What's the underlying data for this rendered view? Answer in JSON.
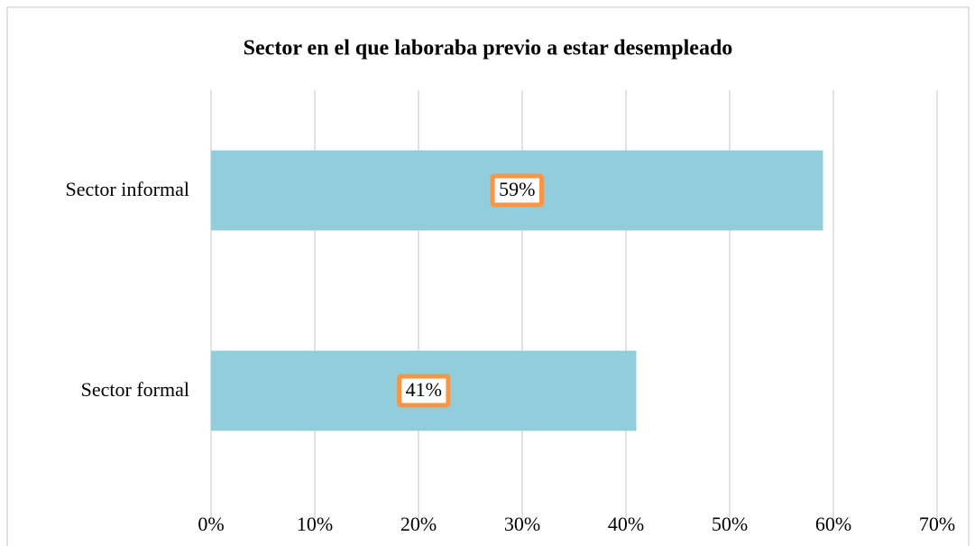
{
  "chart_data": {
    "type": "bar",
    "orientation": "horizontal",
    "title": "Sector en el que laboraba previo a estar desempleado",
    "categories": [
      "Sector informal",
      "Sector formal"
    ],
    "values": [
      59,
      41
    ],
    "value_labels": [
      "59%",
      "41%"
    ],
    "color": "#92cddc",
    "xlim": [
      0,
      70
    ],
    "xticks": [
      {
        "value": 0,
        "label": "0%"
      },
      {
        "value": 10,
        "label": "10%"
      },
      {
        "value": 20,
        "label": "20%"
      },
      {
        "value": 30,
        "label": "30%"
      },
      {
        "value": 40,
        "label": "40%"
      },
      {
        "value": 50,
        "label": "50%"
      },
      {
        "value": 60,
        "label": "60%"
      },
      {
        "value": 70,
        "label": "70%"
      }
    ],
    "grid": true
  }
}
